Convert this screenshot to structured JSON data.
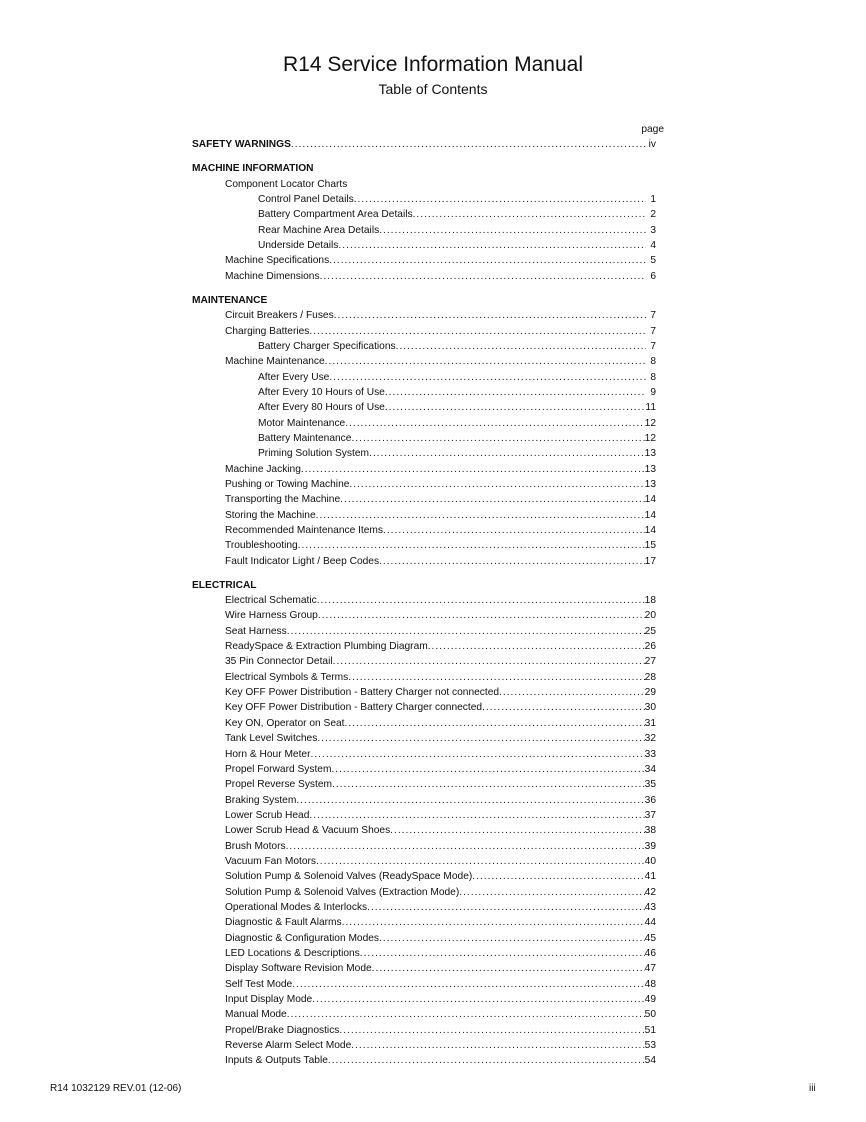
{
  "header": {
    "title": "R14 Service Information Manual",
    "subtitle": "Table of Contents"
  },
  "toc": {
    "page_label": "page",
    "entries": [
      {
        "level": 0,
        "text": "SAFETY WARNINGS",
        "page": "iv"
      },
      {
        "level": 0,
        "text": "MACHINE INFORMATION",
        "page": "",
        "gap": true
      },
      {
        "level": 1,
        "text": "Component Locator Charts",
        "page": ""
      },
      {
        "level": 2,
        "text": "Control Panel Details",
        "page": "1"
      },
      {
        "level": 2,
        "text": "Battery Compartment Area Details",
        "page": "2"
      },
      {
        "level": 2,
        "text": "Rear Machine Area Details",
        "page": "3"
      },
      {
        "level": 2,
        "text": "Underside Details",
        "page": "4"
      },
      {
        "level": 1,
        "text": "Machine Specifications",
        "page": "5"
      },
      {
        "level": 1,
        "text": "Machine Dimensions",
        "page": "6"
      },
      {
        "level": 0,
        "text": "MAINTENANCE",
        "page": "",
        "gap": true
      },
      {
        "level": 1,
        "text": "Circuit Breakers / Fuses",
        "page": "7"
      },
      {
        "level": 1,
        "text": "Charging Batteries",
        "page": "7"
      },
      {
        "level": 2,
        "text": "Battery Charger Specifications",
        "page": "7"
      },
      {
        "level": 1,
        "text": "Machine Maintenance",
        "page": "8"
      },
      {
        "level": 2,
        "text": "After Every Use",
        "page": "8"
      },
      {
        "level": 2,
        "text": "After Every 10 Hours of Use",
        "page": "9"
      },
      {
        "level": 2,
        "text": "After Every 80 Hours of Use",
        "page": "11"
      },
      {
        "level": 2,
        "text": "Motor Maintenance",
        "page": "12"
      },
      {
        "level": 2,
        "text": "Battery Maintenance",
        "page": "12"
      },
      {
        "level": 2,
        "text": "Priming Solution System",
        "page": "13"
      },
      {
        "level": 1,
        "text": "Machine Jacking",
        "page": "13"
      },
      {
        "level": 1,
        "text": "Pushing or Towing Machine",
        "page": "13"
      },
      {
        "level": 1,
        "text": "Transporting the Machine",
        "page": "14"
      },
      {
        "level": 1,
        "text": "Storing the Machine",
        "page": "14"
      },
      {
        "level": 1,
        "text": "Recommended Maintenance Items",
        "page": "14"
      },
      {
        "level": 1,
        "text": "Troubleshooting",
        "page": "15"
      },
      {
        "level": 1,
        "text": "Fault Indicator Light / Beep Codes",
        "page": "17"
      },
      {
        "level": 0,
        "text": "ELECTRICAL",
        "page": "",
        "gap": true
      },
      {
        "level": 1,
        "text": "Electrical Schematic",
        "page": "18"
      },
      {
        "level": 1,
        "text": "Wire Harness Group",
        "page": "20"
      },
      {
        "level": 1,
        "text": "Seat Harness",
        "page": "25"
      },
      {
        "level": 1,
        "text": "ReadySpace & Extraction Plumbing Diagram",
        "page": "26"
      },
      {
        "level": 1,
        "text": "35 Pin Connector Detail",
        "page": "27"
      },
      {
        "level": 1,
        "text": "Electrical Symbols & Terms",
        "page": "28"
      },
      {
        "level": 1,
        "text": "Key OFF Power Distribution - Battery Charger not connected",
        "page": "29"
      },
      {
        "level": 1,
        "text": "Key OFF Power Distribution - Battery Charger connected",
        "page": "30"
      },
      {
        "level": 1,
        "text": "Key ON, Operator on Seat",
        "page": "31"
      },
      {
        "level": 1,
        "text": "Tank Level Switches",
        "page": "32"
      },
      {
        "level": 1,
        "text": "Horn & Hour Meter",
        "page": "33"
      },
      {
        "level": 1,
        "text": "Propel Forward System",
        "page": "34"
      },
      {
        "level": 1,
        "text": "Propel Reverse System",
        "page": "35"
      },
      {
        "level": 1,
        "text": "Braking System",
        "page": "36"
      },
      {
        "level": 1,
        "text": "Lower Scrub Head",
        "page": "37"
      },
      {
        "level": 1,
        "text": "Lower Scrub Head & Vacuum Shoes",
        "page": "38"
      },
      {
        "level": 1,
        "text": "Brush Motors",
        "page": "39"
      },
      {
        "level": 1,
        "text": "Vacuum Fan Motors",
        "page": "40"
      },
      {
        "level": 1,
        "text": "Solution Pump & Solenoid Valves (ReadySpace Mode)",
        "page": "41"
      },
      {
        "level": 1,
        "text": "Solution Pump & Solenoid Valves (Extraction Mode)",
        "page": "42"
      },
      {
        "level": 1,
        "text": "Operational Modes & Interlocks",
        "page": "43"
      },
      {
        "level": 1,
        "text": "Diagnostic & Fault Alarms",
        "page": "44"
      },
      {
        "level": 1,
        "text": "Diagnostic & Configuration Modes",
        "page": "45"
      },
      {
        "level": 1,
        "text": "LED Locations & Descriptions",
        "page": "46"
      },
      {
        "level": 1,
        "text": "Display Software Revision Mode",
        "page": "47"
      },
      {
        "level": 1,
        "text": "Self Test Mode",
        "page": "48"
      },
      {
        "level": 1,
        "text": "Input Display Mode",
        "page": "49"
      },
      {
        "level": 1,
        "text": "Manual Mode",
        "page": "50"
      },
      {
        "level": 1,
        "text": "Propel/Brake Diagnostics",
        "page": "51"
      },
      {
        "level": 1,
        "text": "Reverse Alarm Select Mode",
        "page": "53"
      },
      {
        "level": 1,
        "text": "Inputs & Outputs Table",
        "page": "54"
      }
    ]
  },
  "footer": {
    "doc_number": "R14 1032129 REV.01 (12-06)",
    "page_number": "iii"
  }
}
